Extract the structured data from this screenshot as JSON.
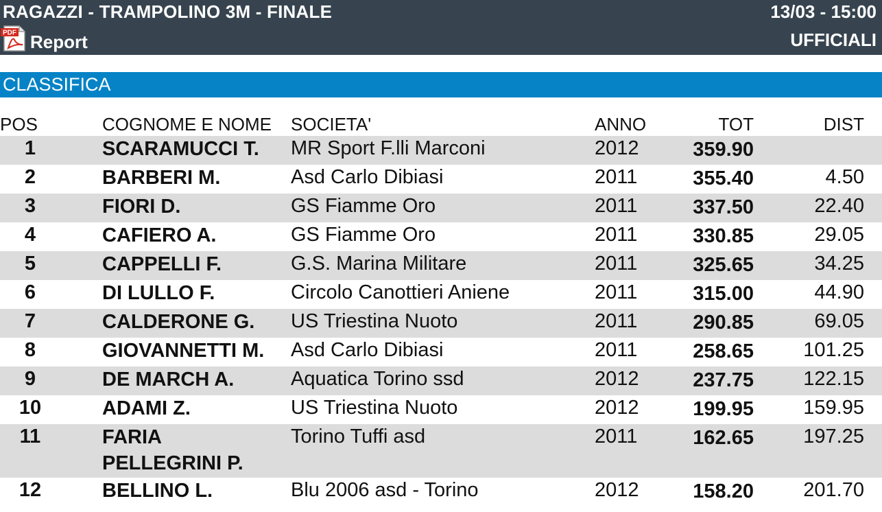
{
  "header": {
    "title": "RAGAZZI - TRAMPOLINO 3M - FINALE",
    "datetime": "13/03 - 15:00",
    "report_label": "Report",
    "pdf_icon_text": "PDF",
    "status": "UFFICIALI",
    "bg_color": "#37444f"
  },
  "section": {
    "title": "CLASSIFICA",
    "bg_color": "#0683c6"
  },
  "table": {
    "columns": {
      "pos": "POS",
      "name": "COGNOME E NOME",
      "society": "SOCIETA'",
      "year": "ANNO",
      "tot": "TOT",
      "dist": "DIST"
    },
    "rows": [
      {
        "pos": "1",
        "name": "SCARAMUCCI T.",
        "society": "MR Sport F.lli Marconi",
        "year": "2012",
        "tot": "359.90",
        "dist": ""
      },
      {
        "pos": "2",
        "name": "BARBERI M.",
        "society": "Asd Carlo Dibiasi",
        "year": "2011",
        "tot": "355.40",
        "dist": "4.50"
      },
      {
        "pos": "3",
        "name": "FIORI D.",
        "society": "GS Fiamme Oro",
        "year": "2011",
        "tot": "337.50",
        "dist": "22.40"
      },
      {
        "pos": "4",
        "name": "CAFIERO A.",
        "society": "GS Fiamme Oro",
        "year": "2011",
        "tot": "330.85",
        "dist": "29.05"
      },
      {
        "pos": "5",
        "name": "CAPPELLI F.",
        "society": "G.S. Marina Militare",
        "year": "2011",
        "tot": "325.65",
        "dist": "34.25"
      },
      {
        "pos": "6",
        "name": "DI LULLO F.",
        "society": "Circolo Canottieri Aniene",
        "year": "2011",
        "tot": "315.00",
        "dist": "44.90"
      },
      {
        "pos": "7",
        "name": "CALDERONE G.",
        "society": "US Triestina Nuoto",
        "year": "2011",
        "tot": "290.85",
        "dist": "69.05"
      },
      {
        "pos": "8",
        "name": "GIOVANNETTI M.",
        "society": "Asd Carlo Dibiasi",
        "year": "2011",
        "tot": "258.65",
        "dist": "101.25"
      },
      {
        "pos": "9",
        "name": "DE MARCH A.",
        "society": "Aquatica Torino ssd",
        "year": "2012",
        "tot": "237.75",
        "dist": "122.15"
      },
      {
        "pos": "10",
        "name": "ADAMI Z.",
        "society": "US Triestina Nuoto",
        "year": "2012",
        "tot": "199.95",
        "dist": "159.95"
      },
      {
        "pos": "11",
        "name": "FARIA PELLEGRINI P.",
        "society": "Torino Tuffi asd",
        "year": "2011",
        "tot": "162.65",
        "dist": "197.25"
      },
      {
        "pos": "12",
        "name": "BELLINO L.",
        "society": "Blu 2006 asd - Torino",
        "year": "2012",
        "tot": "158.20",
        "dist": "201.70"
      }
    ]
  }
}
